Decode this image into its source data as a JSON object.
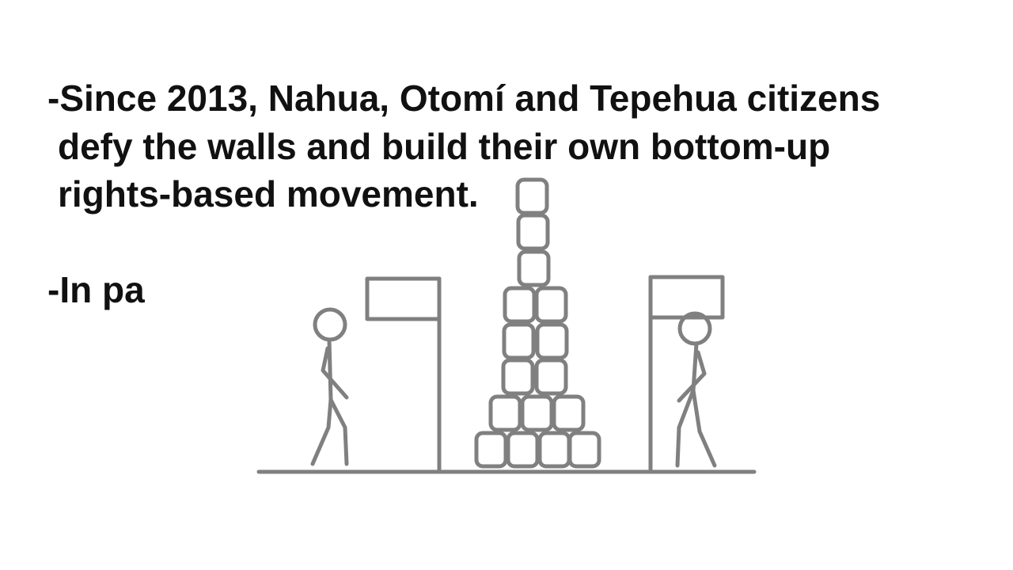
{
  "slide": {
    "lines": [
      "-Since 2013, Nahua, Otomí and Tepehua citizens",
      "defy the walls and build their own bottom-up",
      "rights-based movement.",
      "-In pa"
    ]
  },
  "illustration": {
    "stroke_color": "#808080"
  }
}
